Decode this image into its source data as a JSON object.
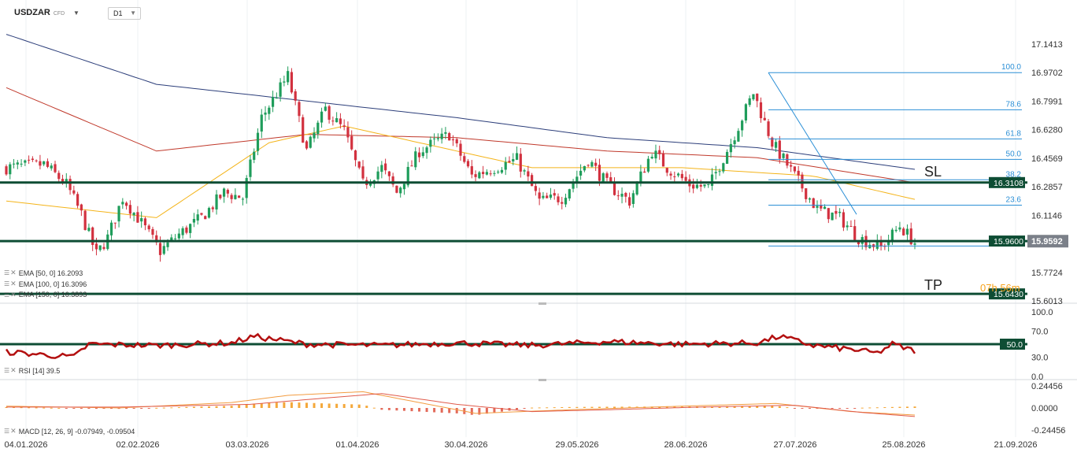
{
  "header": {
    "symbol": "USDZAR",
    "symbol_type": "CFD",
    "timeframe": "D1"
  },
  "price_axis": [
    "17.1413",
    "16.9702",
    "16.7991",
    "16.6280",
    "16.4569",
    "16.2857",
    "16.1146",
    "15.9592",
    "15.7724",
    "15.6013"
  ],
  "rsi_axis": [
    "100.0",
    "70.0",
    "30.0",
    "0.0"
  ],
  "macd_axis": [
    "0.24456",
    "0.0000",
    "-0.24456"
  ],
  "date_axis": [
    "04.01.2026",
    "02.02.2026",
    "03.03.2026",
    "01.04.2026",
    "30.04.2026",
    "29.05.2026",
    "28.06.2026",
    "27.07.2026",
    "25.08.2026",
    "21.09.2026"
  ],
  "levels": {
    "sl_value": "16.3108",
    "entry_value": "15.9600",
    "current_price": "15.9592",
    "tp_value": "15.6430",
    "rsi_level": "50.0"
  },
  "annotations": {
    "sl": "SL",
    "tp": "TP"
  },
  "fib_labels": [
    "100.0",
    "78.6",
    "61.8",
    "50.0",
    "38.2",
    "23.6"
  ],
  "legend": {
    "ema50": "EMA [50, 0] 16.2093",
    "ema100": "EMA [100, 0] 16.3096",
    "ema150": "EMA [150, 0] 16.3893",
    "rsi": "RSI [14] 39.5",
    "macd": "MACD [12, 26, 9] -0.07949, -0.09504"
  },
  "timer": {
    "hours": "07",
    "h": "h",
    "minutes": "56",
    "m": "m"
  },
  "colors": {
    "bull": "#1f9d5b",
    "bear": "#d2313f",
    "level": "#0e4d34",
    "fib": "#2b8fd6",
    "ema50": "#f4b41a",
    "ema100": "#c0392b",
    "ema150": "#2c3e7a",
    "rsi": "#b30f0f",
    "timer": "#f7a21b"
  },
  "chart_data": {
    "type": "candlestick",
    "x": [
      "04.01.2026",
      "02.02.2026",
      "03.03.2026",
      "01.04.2026",
      "30.04.2026",
      "29.05.2026",
      "28.06.2026",
      "27.07.2026",
      "25.08.2026",
      "21.09.2026"
    ],
    "price_axis_ticks": [
      17.1413,
      16.9702,
      16.7991,
      16.628,
      16.4569,
      16.2857,
      16.1146,
      15.7724,
      15.6013
    ],
    "close_anchors": [
      [
        0,
        16.4
      ],
      [
        10,
        16.42
      ],
      [
        16,
        16.3
      ],
      [
        20,
        16.12
      ],
      [
        24,
        15.88
      ],
      [
        27,
        15.98
      ],
      [
        31,
        16.22
      ],
      [
        35,
        16.1
      ],
      [
        41,
        15.9
      ],
      [
        46,
        16.0
      ],
      [
        52,
        16.1
      ],
      [
        58,
        16.25
      ],
      [
        63,
        16.22
      ],
      [
        68,
        16.7
      ],
      [
        75,
        16.95
      ],
      [
        80,
        16.5
      ],
      [
        85,
        16.75
      ],
      [
        90,
        16.62
      ],
      [
        95,
        16.3
      ],
      [
        100,
        16.4
      ],
      [
        104,
        16.25
      ],
      [
        110,
        16.5
      ],
      [
        118,
        16.6
      ],
      [
        124,
        16.35
      ],
      [
        130,
        16.4
      ],
      [
        136,
        16.45
      ],
      [
        142,
        16.2
      ],
      [
        148,
        16.22
      ],
      [
        155,
        16.45
      ],
      [
        160,
        16.3
      ],
      [
        166,
        16.2
      ],
      [
        172,
        16.5
      ],
      [
        176,
        16.4
      ],
      [
        182,
        16.3
      ],
      [
        187,
        16.28
      ],
      [
        193,
        16.55
      ],
      [
        199,
        16.85
      ],
      [
        204,
        16.55
      ],
      [
        210,
        16.35
      ],
      [
        216,
        16.15
      ],
      [
        222,
        16.1
      ],
      [
        227,
        15.98
      ],
      [
        233,
        15.92
      ],
      [
        238,
        16.05
      ],
      [
        242,
        15.95
      ]
    ],
    "ema50": [
      [
        0,
        16.2
      ],
      [
        40,
        16.1
      ],
      [
        70,
        16.55
      ],
      [
        90,
        16.65
      ],
      [
        140,
        16.4
      ],
      [
        180,
        16.4
      ],
      [
        215,
        16.35
      ],
      [
        242,
        16.21
      ]
    ],
    "ema100": [
      [
        0,
        16.88
      ],
      [
        40,
        16.5
      ],
      [
        80,
        16.6
      ],
      [
        120,
        16.58
      ],
      [
        160,
        16.5
      ],
      [
        200,
        16.46
      ],
      [
        242,
        16.31
      ]
    ],
    "ema150": [
      [
        0,
        17.2
      ],
      [
        40,
        16.9
      ],
      [
        80,
        16.8
      ],
      [
        120,
        16.7
      ],
      [
        160,
        16.58
      ],
      [
        200,
        16.52
      ],
      [
        242,
        16.39
      ]
    ],
    "fibonacci": {
      "high": 16.9702,
      "low": 15.93,
      "start_index": 203,
      "levels": [
        100.0,
        78.6,
        61.8,
        50.0,
        38.2,
        23.6
      ]
    },
    "horizontal_levels": [
      16.3108,
      15.96,
      15.643
    ],
    "rsi": {
      "range": [
        0,
        100
      ],
      "last": 39.5,
      "anchors": [
        [
          0,
          38
        ],
        [
          18,
          30
        ],
        [
          22,
          50
        ],
        [
          40,
          48
        ],
        [
          60,
          52
        ],
        [
          66,
          62
        ],
        [
          80,
          50
        ],
        [
          100,
          48
        ],
        [
          120,
          52
        ],
        [
          140,
          48
        ],
        [
          160,
          54
        ],
        [
          180,
          50
        ],
        [
          200,
          52
        ],
        [
          206,
          62
        ],
        [
          215,
          48
        ],
        [
          225,
          42
        ],
        [
          232,
          36
        ],
        [
          236,
          50
        ],
        [
          242,
          39.5
        ]
      ]
    },
    "macd": {
      "range": [
        -0.24456,
        0.24456
      ],
      "macd_last": -0.07949,
      "signal_last": -0.09504
    }
  }
}
